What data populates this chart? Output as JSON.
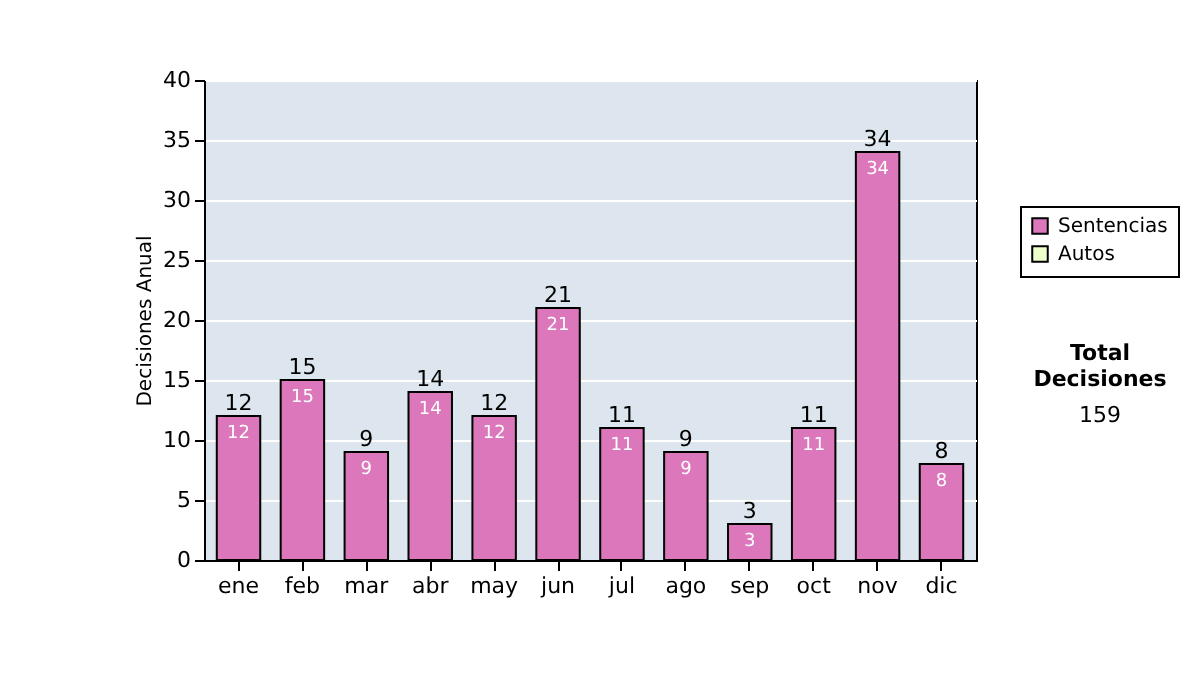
{
  "chart_data": {
    "type": "bar",
    "ylabel": "Decisiones Anual",
    "categories": [
      "ene",
      "feb",
      "mar",
      "abr",
      "may",
      "jun",
      "jul",
      "ago",
      "sep",
      "oct",
      "nov",
      "dic"
    ],
    "series": [
      {
        "name": "Sentencias",
        "color": "#dd77bb",
        "values": [
          12,
          15,
          9,
          14,
          12,
          21,
          11,
          9,
          3,
          11,
          34,
          8
        ]
      },
      {
        "name": "Autos",
        "color": "#eeffcc",
        "values": [
          null,
          null,
          null,
          null,
          null,
          null,
          null,
          null,
          null,
          null,
          null,
          null
        ]
      }
    ],
    "stacked": true,
    "data_labels": true,
    "totals": [
      "12",
      "15",
      "9",
      "14",
      "12",
      "21",
      "11",
      "9",
      "3",
      "11",
      "34",
      "8"
    ],
    "ylim": [
      0,
      40
    ],
    "yticks": [
      0,
      5,
      10,
      15,
      20,
      25,
      30,
      35,
      40
    ],
    "grid": "y",
    "legend": "right",
    "annotations": [
      "Total Decisiones",
      "159"
    ]
  }
}
